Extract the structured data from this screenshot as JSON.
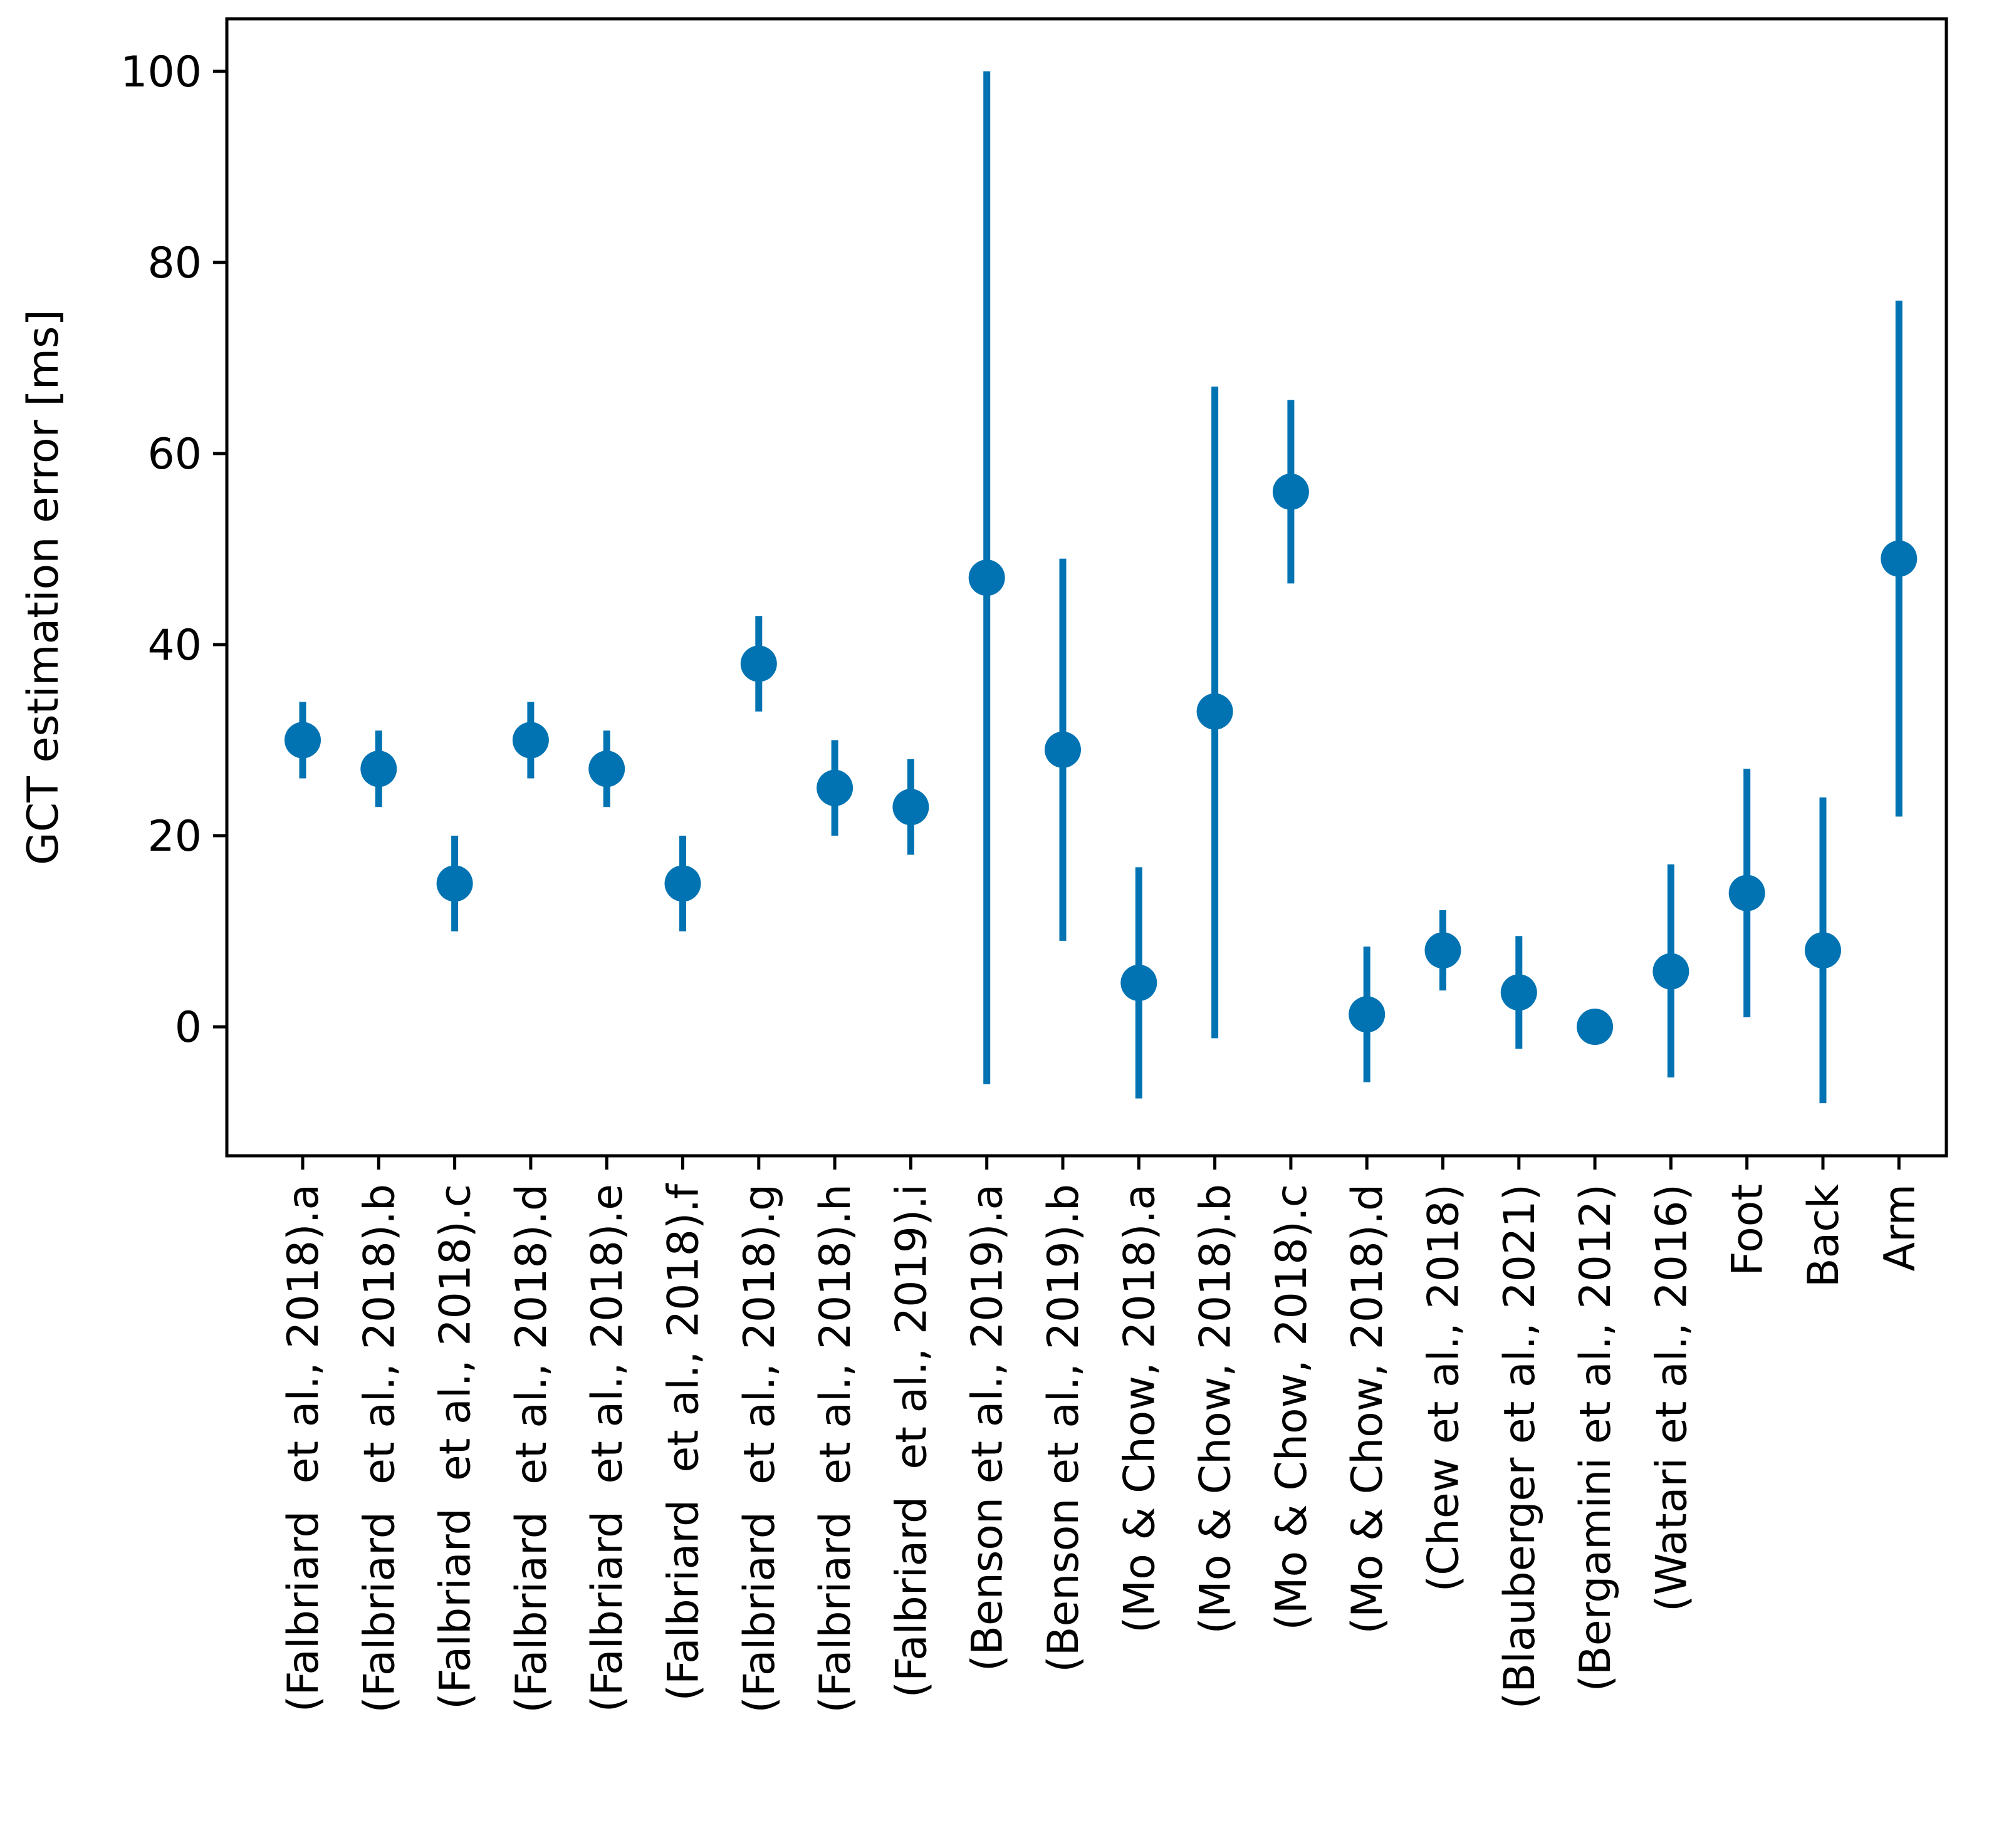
{
  "chart_data": {
    "type": "errorbar",
    "title": "",
    "xlabel": "",
    "ylabel": "GCT estimation error [ms]",
    "ylim": [
      -13.5,
      105.5
    ],
    "yticks": [
      0,
      20,
      40,
      60,
      80,
      100
    ],
    "grid": false,
    "color": "#0173b2",
    "categories": [
      "(Falbriard  et al., 2018).a",
      "(Falbriard  et al., 2018).b",
      "(Falbriard  et al., 2018).c",
      "(Falbriard  et al., 2018).d",
      "(Falbriard  et al., 2018).e",
      "(Falbriard  et al., 2018).f",
      "(Falbriard  et al., 2018).g",
      "(Falbriard  et al., 2018).h",
      "(Falbriard  et al., 2019).i",
      "(Benson et al., 2019).a",
      "(Benson et al., 2019).b",
      "(Mo & Chow, 2018).a",
      "(Mo & Chow, 2018).b",
      "(Mo & Chow, 2018).c",
      "(Mo & Chow, 2018).d",
      "(Chew et al., 2018)",
      "(Blauberger et al., 2021)",
      "(Bergamini et al., 2012)",
      "(Watari et al., 2016)",
      "Foot",
      "Back",
      "Arm"
    ],
    "values": [
      30,
      27,
      15,
      30,
      27,
      15,
      38,
      25,
      23,
      47,
      29,
      4.6,
      33,
      56,
      1.3,
      8,
      3.6,
      0,
      5.8,
      14,
      8,
      49
    ],
    "lower": [
      26,
      23,
      10,
      26,
      23,
      10,
      33,
      20,
      18,
      -6,
      9,
      -7.5,
      -1.2,
      46.4,
      -5.8,
      3.8,
      -2.3,
      0,
      -5.3,
      1,
      -8,
      22
    ],
    "upper": [
      34,
      31,
      20,
      34,
      31,
      20,
      43,
      30,
      28,
      100,
      49,
      16.7,
      67,
      65.6,
      8.4,
      12.2,
      9.5,
      0,
      17,
      27,
      24,
      76
    ]
  }
}
